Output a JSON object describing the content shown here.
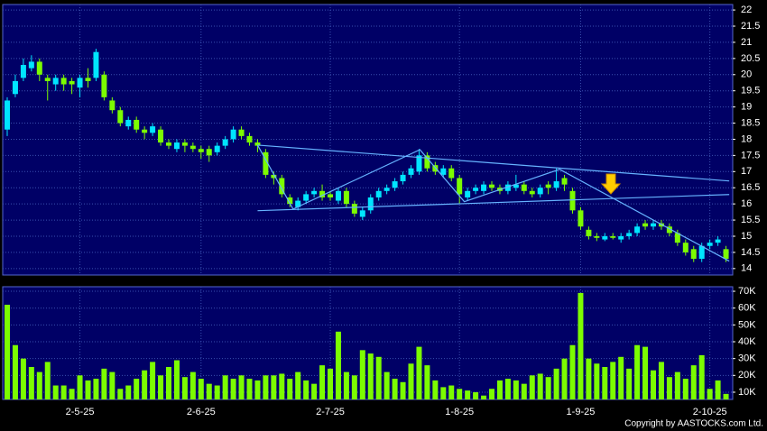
{
  "chart_data": {
    "type": "candlestick",
    "up_color": "#00e5ff",
    "down_color": "#7cfc00",
    "volume_color": "#7cfc00",
    "background": "#000066",
    "trend_color": "#66b3ff",
    "grid": true,
    "copyright": "Copyright by AASTOCKS.com Ltd.",
    "categories": [
      null,
      null,
      null,
      null,
      null,
      null,
      null,
      null,
      null,
      "2-5-25",
      null,
      null,
      null,
      null,
      null,
      null,
      null,
      null,
      null,
      null,
      null,
      null,
      null,
      null,
      "2-6-25",
      null,
      null,
      null,
      null,
      null,
      null,
      null,
      null,
      null,
      null,
      null,
      null,
      null,
      null,
      null,
      "2-7-25",
      null,
      null,
      null,
      null,
      null,
      null,
      null,
      null,
      null,
      null,
      null,
      null,
      null,
      null,
      null,
      "1-8-25",
      null,
      null,
      null,
      null,
      null,
      null,
      null,
      null,
      null,
      null,
      null,
      null,
      null,
      null,
      "1-9-25",
      null,
      null,
      null,
      null,
      null,
      null,
      null,
      null,
      null,
      null,
      null,
      null,
      null,
      null,
      null,
      "2-10-25",
      null,
      null
    ],
    "open": [
      18.3,
      19.4,
      19.9,
      20.2,
      20.4,
      19.9,
      19.7,
      19.9,
      19.8,
      19.6,
      19.9,
      19.9,
      20.0,
      19.2,
      18.9,
      18.4,
      18.6,
      18.3,
      18.2,
      18.3,
      17.9,
      17.7,
      17.9,
      17.8,
      17.7,
      17.7,
      17.6,
      17.8,
      18.0,
      18.3,
      18.1,
      17.9,
      17.6,
      16.9,
      16.8,
      16.2,
      15.9,
      16.1,
      16.3,
      16.4,
      16.3,
      16.1,
      16.4,
      16.0,
      15.6,
      15.8,
      16.2,
      16.4,
      16.5,
      16.7,
      16.9,
      17.0,
      17.5,
      17.2,
      16.9,
      17.1,
      16.8,
      16.2,
      16.4,
      16.4,
      16.6,
      16.5,
      16.4,
      16.5,
      16.6,
      16.4,
      16.3,
      16.6,
      16.5,
      16.8,
      16.4,
      15.8,
      15.2,
      15.0,
      14.9,
      15.0,
      14.9,
      15.0,
      15.1,
      15.4,
      15.3,
      15.4,
      15.3,
      15.1,
      14.8,
      14.6,
      14.3,
      14.7,
      14.8,
      14.6
    ],
    "high": [
      19.3,
      20.0,
      20.5,
      20.6,
      20.5,
      20.0,
      20.0,
      20.0,
      19.9,
      20.0,
      20.2,
      20.8,
      20.1,
      19.3,
      19.0,
      18.7,
      18.7,
      18.4,
      18.5,
      18.4,
      18.0,
      18.0,
      18.0,
      17.9,
      17.8,
      17.8,
      17.9,
      18.1,
      18.4,
      18.4,
      18.2,
      18.0,
      17.7,
      17.0,
      16.9,
      16.3,
      16.2,
      16.4,
      16.5,
      16.6,
      16.4,
      16.5,
      16.5,
      16.1,
      15.9,
      16.3,
      16.5,
      16.6,
      16.8,
      17.0,
      17.2,
      17.7,
      17.6,
      17.3,
      17.2,
      17.2,
      16.9,
      16.5,
      16.6,
      16.7,
      16.7,
      16.6,
      16.7,
      16.9,
      16.7,
      16.5,
      16.6,
      16.7,
      17.1,
      16.9,
      16.5,
      15.9,
      15.3,
      15.1,
      15.1,
      15.1,
      15.1,
      15.2,
      15.4,
      15.5,
      15.5,
      15.5,
      15.4,
      15.2,
      14.9,
      14.7,
      14.8,
      14.9,
      15.0,
      14.7
    ],
    "low": [
      18.1,
      19.3,
      19.8,
      20.1,
      19.8,
      19.2,
      19.5,
      19.5,
      19.4,
      19.3,
      19.6,
      19.8,
      19.2,
      18.8,
      18.4,
      18.3,
      18.2,
      18.0,
      18.1,
      17.8,
      17.7,
      17.6,
      17.6,
      17.6,
      17.4,
      17.3,
      17.5,
      17.7,
      17.9,
      18.0,
      17.8,
      17.6,
      16.8,
      16.6,
      16.2,
      15.9,
      15.8,
      16.0,
      16.2,
      16.1,
      16.1,
      16.0,
      15.9,
      15.6,
      15.5,
      15.7,
      16.1,
      16.3,
      16.4,
      16.6,
      16.8,
      16.9,
      17.0,
      16.9,
      16.8,
      16.7,
      16.0,
      16.1,
      16.3,
      16.3,
      16.4,
      16.3,
      16.3,
      16.4,
      16.3,
      16.2,
      16.2,
      16.3,
      16.4,
      16.4,
      15.7,
      15.2,
      14.9,
      14.85,
      14.85,
      14.9,
      14.8,
      14.9,
      15.0,
      15.2,
      15.2,
      15.2,
      15.0,
      14.7,
      14.4,
      14.2,
      14.2,
      14.6,
      14.7,
      14.2
    ],
    "close": [
      19.2,
      19.8,
      20.3,
      20.4,
      20.0,
      19.8,
      19.9,
      19.7,
      19.7,
      19.9,
      19.8,
      20.7,
      19.3,
      18.9,
      18.5,
      18.6,
      18.3,
      18.2,
      18.4,
      17.9,
      17.8,
      17.9,
      17.8,
      17.7,
      17.6,
      17.5,
      17.8,
      18.0,
      18.3,
      18.1,
      17.9,
      17.8,
      16.9,
      16.8,
      16.3,
      16.0,
      16.1,
      16.3,
      16.4,
      16.2,
      16.2,
      16.4,
      16.0,
      15.7,
      15.8,
      16.2,
      16.4,
      16.5,
      16.7,
      16.9,
      17.1,
      17.5,
      17.1,
      17.0,
      17.1,
      16.8,
      16.3,
      16.4,
      16.5,
      16.6,
      16.5,
      16.4,
      16.6,
      16.6,
      16.4,
      16.3,
      16.5,
      16.5,
      16.7,
      16.6,
      15.8,
      15.3,
      15.0,
      14.95,
      15.0,
      14.95,
      15.0,
      15.1,
      15.3,
      15.3,
      15.4,
      15.3,
      15.1,
      14.8,
      14.5,
      14.3,
      14.7,
      14.8,
      14.9,
      14.3
    ],
    "volume": [
      62000,
      38000,
      30000,
      25000,
      22000,
      28000,
      14000,
      14000,
      12000,
      20000,
      17000,
      18000,
      24000,
      22000,
      12000,
      14000,
      18000,
      23000,
      28000,
      20000,
      25000,
      29000,
      19000,
      22000,
      18000,
      15000,
      14000,
      20000,
      18000,
      20000,
      18000,
      17000,
      20000,
      20000,
      21000,
      18000,
      22000,
      17000,
      15000,
      26000,
      24000,
      46000,
      22000,
      20000,
      35000,
      33000,
      31000,
      22000,
      18000,
      16000,
      27000,
      37000,
      26000,
      17000,
      13000,
      14000,
      12000,
      11000,
      10000,
      8000,
      12000,
      17000,
      18000,
      17000,
      15000,
      20000,
      21000,
      19000,
      24000,
      30000,
      38000,
      69000,
      30000,
      27000,
      25000,
      28000,
      31000,
      24000,
      38000,
      37000,
      23000,
      28000,
      19000,
      22000,
      18000,
      26000,
      32000,
      12000,
      17000,
      9000
    ],
    "ylim": [
      13.8,
      22.17
    ],
    "yticks": [
      14,
      14.5,
      15,
      15.5,
      16,
      16.5,
      17,
      17.5,
      18,
      18.5,
      19,
      19.5,
      20,
      20.5,
      21,
      21.5,
      22
    ],
    "volume_ylim": [
      5700,
      72700
    ],
    "volume_yticks": [
      {
        "value": 10000,
        "label": "10K"
      },
      {
        "value": 20000,
        "label": "20K"
      },
      {
        "value": 30000,
        "label": "30K"
      },
      {
        "value": 40000,
        "label": "40K"
      },
      {
        "value": 50000,
        "label": "50K"
      },
      {
        "value": 60000,
        "label": "60K"
      },
      {
        "value": 70000,
        "label": "70K"
      }
    ],
    "trendlines": [
      {
        "x": [
          31,
          89.4
        ],
        "y": [
          17.82,
          16.71
        ]
      },
      {
        "x": [
          31,
          89.4
        ],
        "y": [
          15.79,
          16.29
        ]
      },
      {
        "x": [
          31,
          35.4,
          51.1,
          56.6,
          68.4,
          89.4
        ],
        "y": [
          17.82,
          15.84,
          17.68,
          16.07,
          17.07,
          14.23
        ]
      }
    ]
  }
}
